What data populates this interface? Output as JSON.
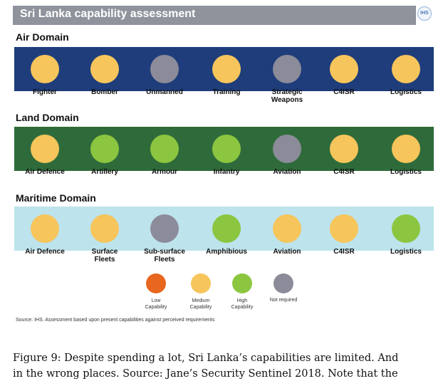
{
  "title": "Sri Lanka capability assessment",
  "logo_text": "IHS",
  "colors": {
    "title_bar": "#8e939c",
    "air_band": "#1e3d7a",
    "land_band": "#2f6b3a",
    "maritime_band": "#bde3ec",
    "low": "#e8661e",
    "medium": "#f6c55b",
    "high": "#8cc640",
    "not_required": "#8b8b99"
  },
  "domains": [
    {
      "name": "Air Domain",
      "items": [
        {
          "label": [
            "Fighter"
          ],
          "rating": "medium"
        },
        {
          "label": [
            "Bomber"
          ],
          "rating": "medium"
        },
        {
          "label": [
            "Unmanned"
          ],
          "rating": "not_required"
        },
        {
          "label": [
            "Training"
          ],
          "rating": "medium"
        },
        {
          "label": [
            "Strategic",
            "Weapons"
          ],
          "rating": "not_required"
        },
        {
          "label": [
            "C4ISR"
          ],
          "rating": "medium"
        },
        {
          "label": [
            "Logistics"
          ],
          "rating": "medium"
        }
      ]
    },
    {
      "name": "Land Domain",
      "items": [
        {
          "label": [
            "Air Defence"
          ],
          "rating": "medium"
        },
        {
          "label": [
            "Artillery"
          ],
          "rating": "high"
        },
        {
          "label": [
            "Armour"
          ],
          "rating": "high"
        },
        {
          "label": [
            "Infantry"
          ],
          "rating": "high"
        },
        {
          "label": [
            "Aviation"
          ],
          "rating": "not_required"
        },
        {
          "label": [
            "C4ISR"
          ],
          "rating": "medium"
        },
        {
          "label": [
            "Logistics"
          ],
          "rating": "medium"
        }
      ]
    },
    {
      "name": "Maritime Domain",
      "items": [
        {
          "label": [
            "Air Defence"
          ],
          "rating": "medium"
        },
        {
          "label": [
            "Surface",
            "Fleets"
          ],
          "rating": "medium"
        },
        {
          "label": [
            "Sub-surface",
            "Fleets"
          ],
          "rating": "not_required"
        },
        {
          "label": [
            "Amphibious"
          ],
          "rating": "high"
        },
        {
          "label": [
            "Aviation"
          ],
          "rating": "medium"
        },
        {
          "label": [
            "C4ISR"
          ],
          "rating": "medium"
        },
        {
          "label": [
            "Logistics"
          ],
          "rating": "high"
        }
      ]
    }
  ],
  "legend": [
    {
      "rating": "low",
      "label": [
        "Low",
        "Capability"
      ]
    },
    {
      "rating": "medium",
      "label": [
        "Medium",
        "Capability"
      ]
    },
    {
      "rating": "high",
      "label": [
        "High",
        "Capability"
      ]
    },
    {
      "rating": "not_required",
      "label": [
        "Not required"
      ]
    }
  ],
  "source_note": "Source: IHS. Assessment based upon present capabilities against perceived requirements",
  "caption": {
    "line1": "Figure 9:  Despite spending a lot, Sri Lanka’s capabilities are limited.  And",
    "line2": "in the wrong places.  Source:  Jane’s Security Sentinel 2018.  Note that the"
  }
}
